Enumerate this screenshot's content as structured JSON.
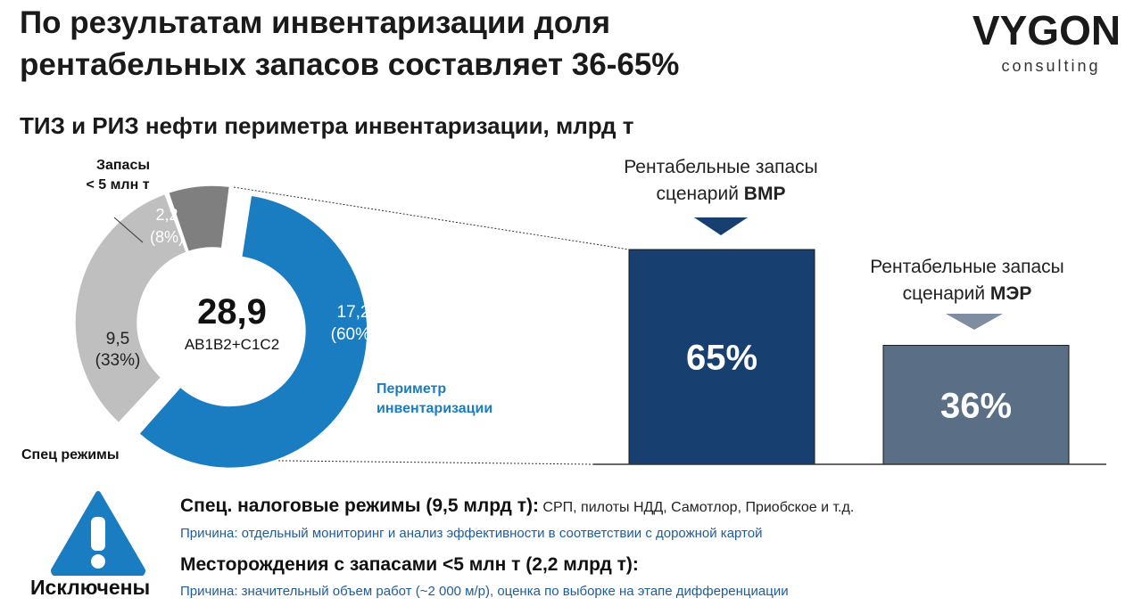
{
  "title_line1": "По результатам инвентаризации доля",
  "title_line2": "рентабельных запасов составляет 36-65%",
  "logo": {
    "main": "VYGON",
    "sub": "consulting"
  },
  "subtitle": "ТИЗ и РИЗ нефти периметра инвентаризации, млрд т",
  "colors": {
    "perimeter": "#1a7cc1",
    "spec": "#bfbfbf",
    "small": "#7f7f7f",
    "bar_vmr": "#173f70",
    "bar_mer": "#5a6e85"
  },
  "chart_data": [
    {
      "type": "pie",
      "center_value": "28,9",
      "center_label": "АВ1В2+С1С2",
      "slices": [
        {
          "label": "Периметр инвентаризации",
          "value": 17.2,
          "value_text": "17,2",
          "percent_text": "(60%)",
          "color": "#1a7cc1"
        },
        {
          "label": "Спец режимы",
          "value": 9.5,
          "value_text": "9,5",
          "percent_text": "(33%)",
          "color": "#bfbfbf"
        },
        {
          "label": "Запасы < 5 млн т",
          "value": 2.2,
          "value_text": "2,2",
          "percent_text": "(8%)",
          "color": "#7f7f7f"
        }
      ],
      "labels": {
        "small_line1": "Запасы",
        "small_line2": "< 5 млн т",
        "spec": "Спец режимы",
        "perimeter_line1": "Периметр",
        "perimeter_line2": "инвентаризации"
      }
    },
    {
      "type": "bar",
      "categories": [
        "Рентабельные запасы сценарий ВМР",
        "Рентабельные запасы сценарий МЭР"
      ],
      "values": [
        65,
        36
      ],
      "value_labels": [
        "65%",
        "36%"
      ],
      "ylim": [
        0,
        65
      ],
      "bars": [
        {
          "line1": "Рентабельные запасы",
          "line2_prefix": "сценарий ",
          "line2_bold": "ВМР",
          "value": 65,
          "label": "65%",
          "color": "#173f70"
        },
        {
          "line1": "Рентабельные запасы",
          "line2_prefix": "сценарий ",
          "line2_bold": "МЭР",
          "value": 36,
          "label": "36%",
          "color": "#5a6e85"
        }
      ]
    }
  ],
  "footer": {
    "excluded_label": "Исключены",
    "item1_heading": "Спец. налоговые режимы (9,5 млрд т):",
    "item1_detail": " СРП, пилоты НДД, Самотлор, Приобское и т.д.",
    "item1_reason": "Причина: отдельный мониторинг и анализ эффективности в соответствии с дорожной картой",
    "item2_heading": "Месторождения с запасами <5 млн т (2,2 млрд т):",
    "item2_reason": "Причина: значительный объем работ (~2 000 м/р), оценка по выборке на этапе дифференциации"
  }
}
